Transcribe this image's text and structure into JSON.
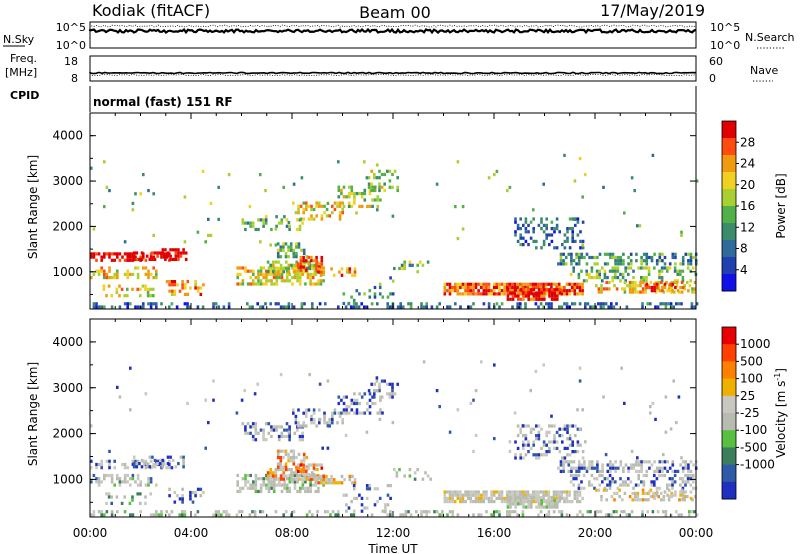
{
  "header": {
    "station": "Kodiak (fitACF)",
    "beam": "Beam 00",
    "date": "17/May/2019"
  },
  "strip_panels": {
    "nsky": {
      "label": "N.Sky",
      "ticks": [
        "10^5",
        "10^0"
      ]
    },
    "nsearch": {
      "label": "N.Search",
      "ticks": [
        "10^5",
        "10^0"
      ]
    },
    "freq": {
      "label_line1": "Freq.",
      "label_line2": "[MHz]",
      "ticks": [
        "18",
        "8"
      ]
    },
    "nave": {
      "label": "Nave",
      "ticks": [
        "60",
        "0"
      ]
    },
    "cpid": {
      "label": "CPID",
      "value": "normal (fast) 151 RF"
    }
  },
  "chart_data": [
    {
      "type": "heatmap",
      "name": "power",
      "ylabel": "Slant Range [km]",
      "ylim": [
        180,
        4500
      ],
      "yticks": [
        1000,
        2000,
        3000,
        4000
      ],
      "xlim": [
        0,
        24
      ],
      "colorbar": {
        "label": "Power [dB]",
        "range": [
          0,
          32
        ],
        "ticks": [
          "28",
          "24",
          "20",
          "16",
          "12",
          "8",
          "4"
        ],
        "colors": [
          "#1010e8",
          "#2040b0",
          "#2e6a9a",
          "#3a8c6a",
          "#52b048",
          "#a8d030",
          "#f0d020",
          "#f09a10",
          "#ff4a10",
          "#e00000"
        ]
      }
    },
    {
      "type": "heatmap",
      "name": "velocity",
      "ylabel": "Slant Range [km]",
      "ylim": [
        180,
        4500
      ],
      "yticks": [
        1000,
        2000,
        3000,
        4000
      ],
      "xlim": [
        0,
        24
      ],
      "colorbar": {
        "label": "Velocity [m s",
        "label_sup": "-1",
        "label_end": "]",
        "ticks": [
          "1000",
          "500",
          "100",
          "25",
          "-25",
          "-100",
          "-500",
          "-1000"
        ],
        "colors": [
          "#1f2fc0",
          "#2f5aa8",
          "#3c7e5c",
          "#58c040",
          "#b8bcb0",
          "#c8c8c0",
          "#f0b000",
          "#ff8000",
          "#ff4000",
          "#e80000"
        ]
      }
    }
  ],
  "time_axis": {
    "label": "Time UT",
    "ticks": [
      "00:00",
      "04:00",
      "08:00",
      "12:00",
      "16:00",
      "20:00",
      "00:00"
    ]
  }
}
